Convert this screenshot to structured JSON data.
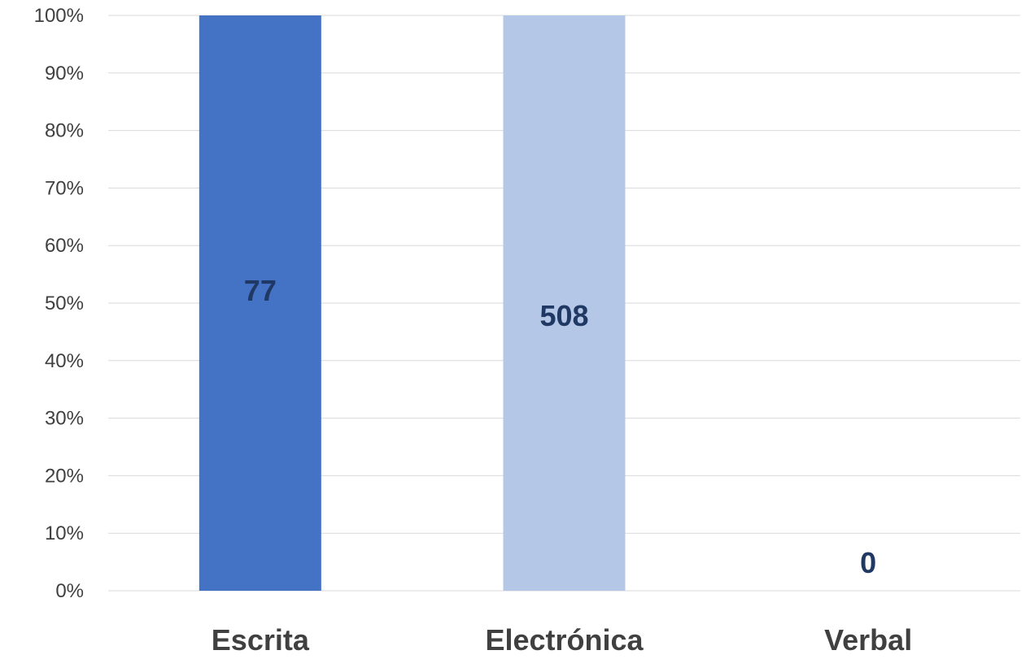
{
  "chart_data": {
    "type": "bar",
    "stacked_percent": true,
    "categories": [
      "Escrita",
      "Electrónica",
      "Verbal"
    ],
    "values": [
      77,
      508,
      0
    ],
    "value_labels": [
      "77",
      "508",
      "0"
    ],
    "ylim": [
      0,
      100
    ],
    "yticks": [
      "0%",
      "10%",
      "20%",
      "30%",
      "40%",
      "50%",
      "60%",
      "70%",
      "80%",
      "90%",
      "100%"
    ],
    "title": "",
    "xlabel": "",
    "ylabel": "",
    "grid": true,
    "legend": "none",
    "colors": [
      "#4472c4",
      "#b4c7e7",
      "#a5a5a5"
    ]
  }
}
